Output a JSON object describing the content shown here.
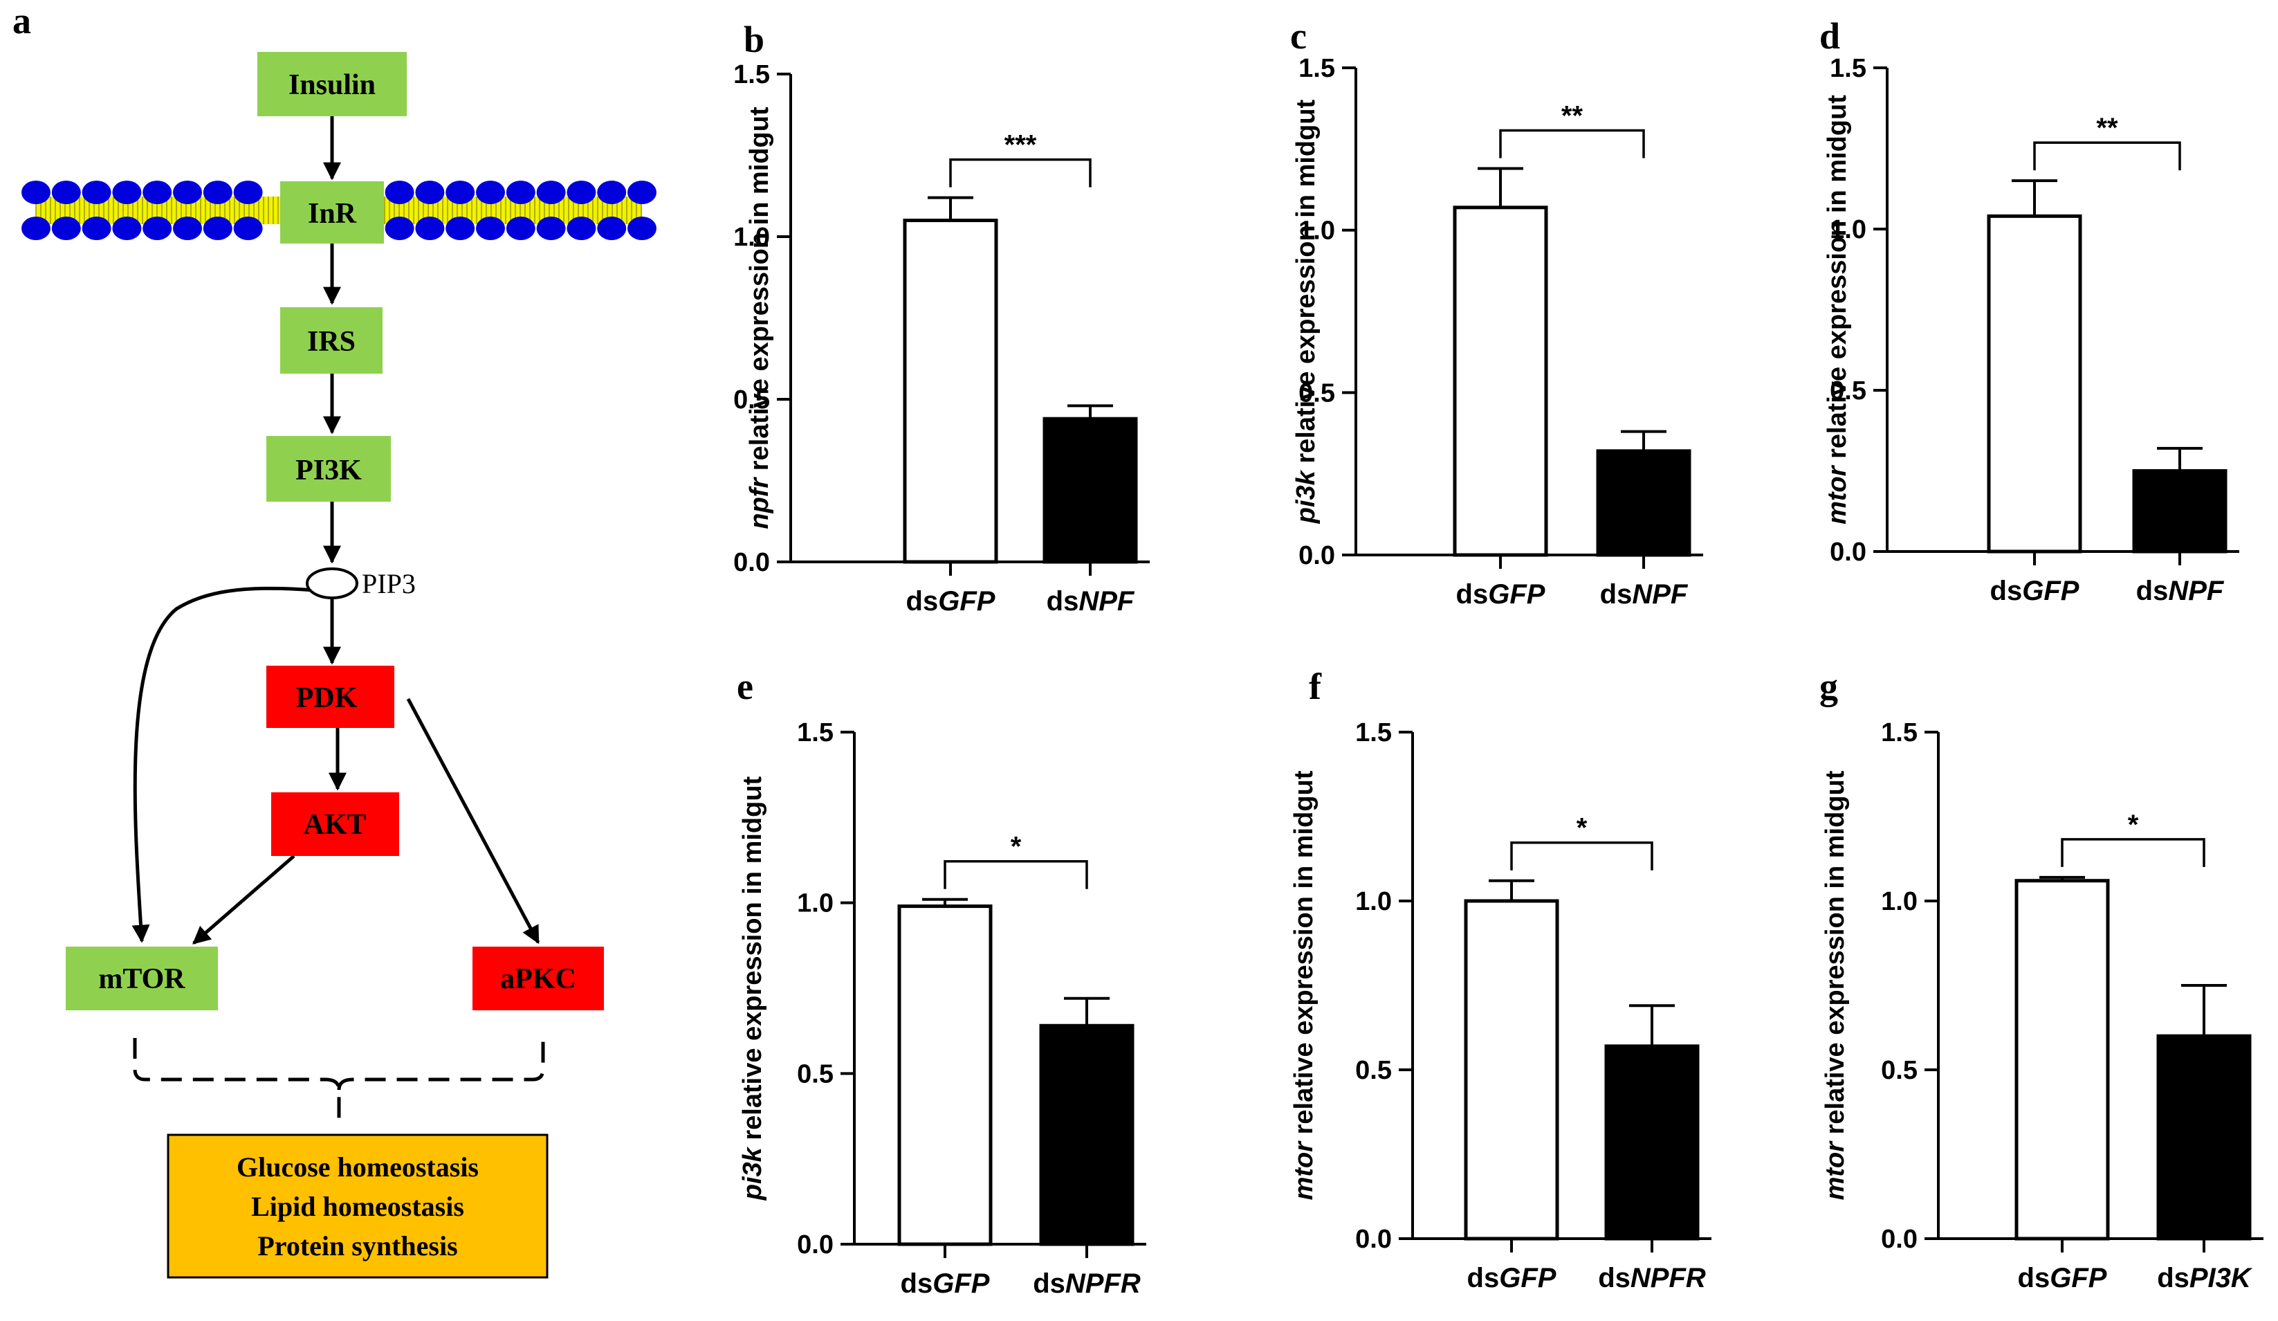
{
  "colors": {
    "green": "#8fd14f",
    "red": "#ff0000",
    "orange": "#ffc000",
    "membrane_blue": "#0000dd",
    "membrane_yellow": "#f2f200",
    "bar_control": "#ffffff",
    "bar_treated": "#000000"
  },
  "pathway": {
    "panel_letter": "a",
    "nodes": {
      "insulin": "Insulin",
      "inr": "InR",
      "irs": "IRS",
      "pi3k": "PI3K",
      "pip3": "PIP3",
      "pdk": "PDK",
      "akt": "AKT",
      "mtor": "mTOR",
      "apkc": "aPKC"
    },
    "outcomes": [
      "Glucose homeostasis",
      "Lipid homeostasis",
      "Protein synthesis"
    ]
  },
  "chart_data": [
    {
      "panel_letter": "b",
      "type": "bar",
      "ylabel_italic": "npfr",
      "ylabel_rest": " relative expression in midgut",
      "ylim": [
        0,
        1.5
      ],
      "yticks": [
        "0.0",
        "0.5",
        "1.0",
        "1.5"
      ],
      "categories": [
        {
          "prefix": "ds",
          "italic": "GFP",
          "value": 1.05,
          "error": 0.07
        },
        {
          "prefix": "ds",
          "italic": "NPF",
          "value": 0.44,
          "error": 0.04
        }
      ],
      "significance": "***"
    },
    {
      "panel_letter": "c",
      "type": "bar",
      "ylabel_italic": "pi3k",
      "ylabel_rest": " relative expression in midgut",
      "ylim": [
        0,
        1.5
      ],
      "yticks": [
        "0.0",
        "0.5",
        "1.0",
        "1.5"
      ],
      "categories": [
        {
          "prefix": "ds",
          "italic": "GFP",
          "value": 1.07,
          "error": 0.12
        },
        {
          "prefix": "ds",
          "italic": "NPF",
          "value": 0.32,
          "error": 0.06
        }
      ],
      "significance": "**"
    },
    {
      "panel_letter": "d",
      "type": "bar",
      "ylabel_italic": "mtor",
      "ylabel_rest": " relative expression in midgut",
      "ylim": [
        0,
        1.5
      ],
      "yticks": [
        "0.0",
        "0.5",
        "1.0",
        "1.5"
      ],
      "categories": [
        {
          "prefix": "ds",
          "italic": "GFP",
          "value": 1.04,
          "error": 0.11
        },
        {
          "prefix": "ds",
          "italic": "NPF",
          "value": 0.25,
          "error": 0.07
        }
      ],
      "significance": "**"
    },
    {
      "panel_letter": "e",
      "type": "bar",
      "ylabel_italic": "pi3k",
      "ylabel_rest": " relative expression in midgut",
      "ylim": [
        0,
        1.5
      ],
      "yticks": [
        "0.0",
        "0.5",
        "1.0",
        "1.5"
      ],
      "categories": [
        {
          "prefix": "ds",
          "italic": "GFP",
          "value": 0.99,
          "error": 0.02
        },
        {
          "prefix": "ds",
          "italic": "NPFR",
          "value": 0.64,
          "error": 0.08
        }
      ],
      "significance": "*"
    },
    {
      "panel_letter": "f",
      "type": "bar",
      "ylabel_italic": "mtor",
      "ylabel_rest": " relative expression in midgut",
      "ylim": [
        0,
        1.5
      ],
      "yticks": [
        "0.0",
        "0.5",
        "1.0",
        "1.5"
      ],
      "categories": [
        {
          "prefix": "ds",
          "italic": "GFP",
          "value": 1.0,
          "error": 0.06
        },
        {
          "prefix": "ds",
          "italic": "NPFR",
          "value": 0.57,
          "error": 0.12
        }
      ],
      "significance": "*"
    },
    {
      "panel_letter": "g",
      "type": "bar",
      "ylabel_italic": "mtor",
      "ylabel_rest": " relative expression in midgut",
      "ylim": [
        0,
        1.5
      ],
      "yticks": [
        "0.0",
        "0.5",
        "1.0",
        "1.5"
      ],
      "categories": [
        {
          "prefix": "ds",
          "italic": "GFP",
          "value": 1.06,
          "error": 0.01
        },
        {
          "prefix": "ds",
          "italic": "PI3K",
          "value": 0.6,
          "error": 0.15
        }
      ],
      "significance": "*"
    }
  ]
}
